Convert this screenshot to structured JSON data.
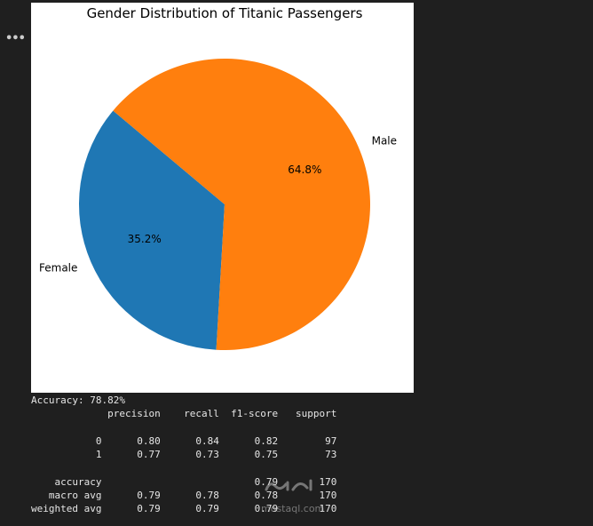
{
  "cell": {
    "menu_icon": "ellipsis-icon",
    "menu_label": "•••"
  },
  "chart_data": {
    "type": "pie",
    "title": "Gender Distribution of Titanic Passengers",
    "startangle_deg": 140,
    "slices": [
      {
        "label": "Female",
        "value": 35.2,
        "pct_label": "35.2%",
        "color": "#1f77b4"
      },
      {
        "label": "Male",
        "value": 64.8,
        "pct_label": "64.8%",
        "color": "#ff7f0e"
      }
    ]
  },
  "report": {
    "accuracy_line": "Accuracy: 78.82%",
    "headers": [
      "precision",
      "recall",
      "f1-score",
      "support"
    ],
    "rows": [
      {
        "label": "0",
        "precision": "0.80",
        "recall": "0.84",
        "f1": "0.82",
        "support": "97"
      },
      {
        "label": "1",
        "precision": "0.77",
        "recall": "0.73",
        "f1": "0.75",
        "support": "73"
      }
    ],
    "summary": [
      {
        "label": "accuracy",
        "precision": "",
        "recall": "",
        "f1": "0.79",
        "support": "170"
      },
      {
        "label": "macro avg",
        "precision": "0.79",
        "recall": "0.78",
        "f1": "0.78",
        "support": "170"
      },
      {
        "label": "weighted avg",
        "precision": "0.79",
        "recall": "0.79",
        "f1": "0.79",
        "support": "170"
      }
    ]
  },
  "watermark": {
    "logo": "mostaql-logo",
    "url": "mostaql.com"
  }
}
